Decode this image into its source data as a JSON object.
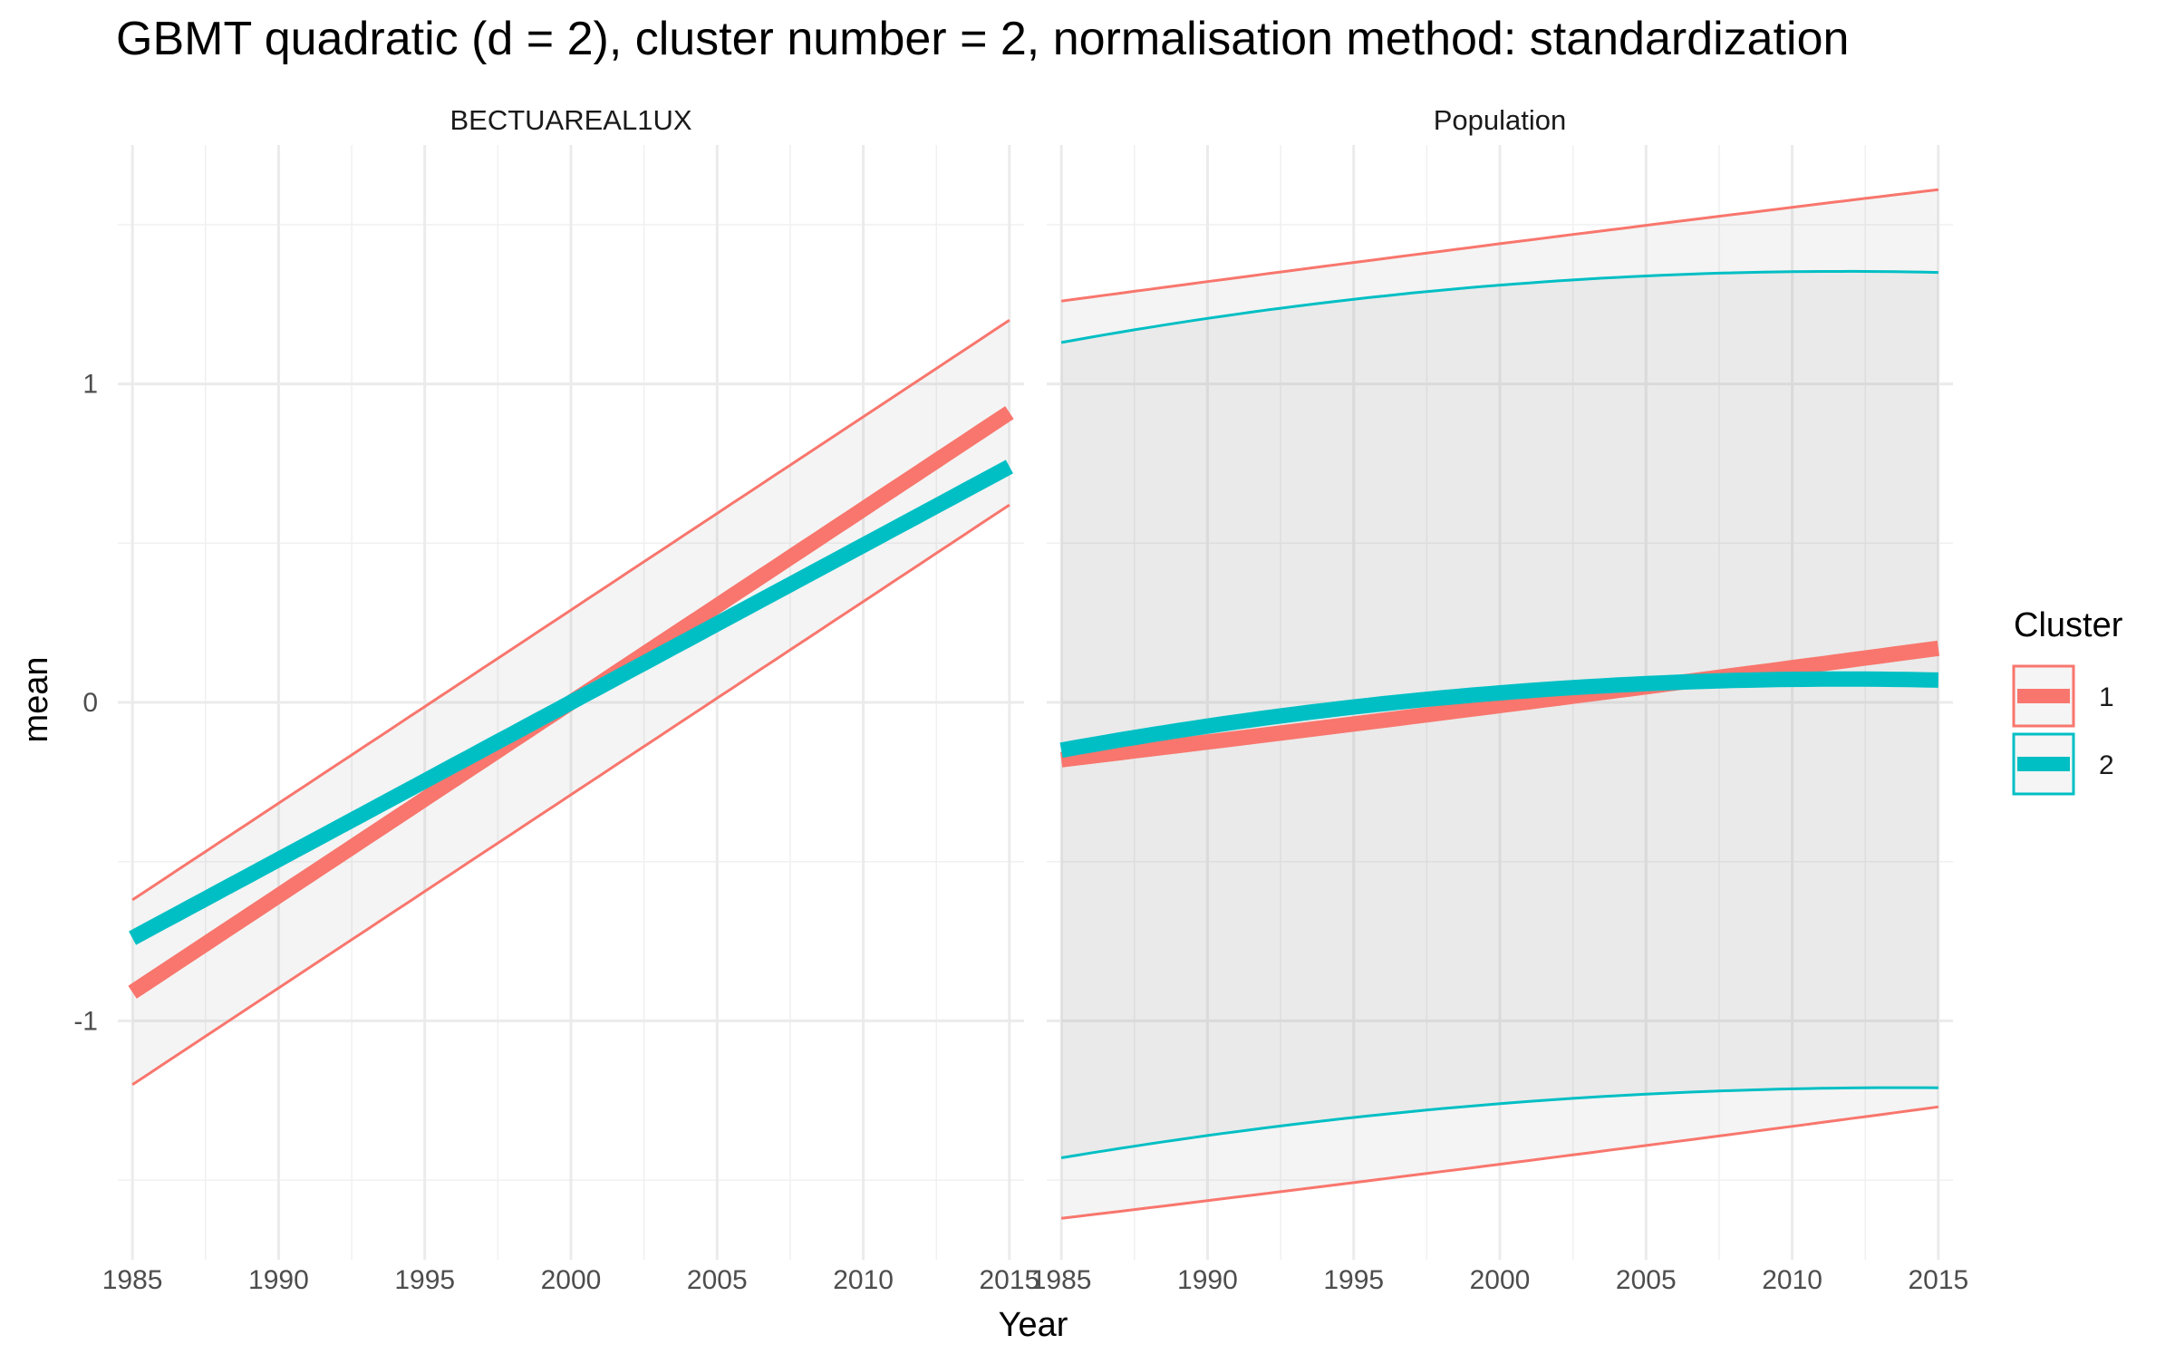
{
  "chart_data": {
    "type": "line",
    "title": "GBMT quadratic (d = 2), cluster number = 2, normalisation method: standardization",
    "xlabel": "Year",
    "ylabel": "mean",
    "xlim": [
      1984.5,
      2015.5
    ],
    "ylim": [
      -1.75,
      1.75
    ],
    "x_ticks": [
      1985,
      1990,
      1995,
      2000,
      2005,
      2010,
      2015
    ],
    "y_ticks": [
      -1,
      0,
      1
    ],
    "grid": true,
    "legend": {
      "title": "Cluster",
      "placement": "right",
      "entries": [
        {
          "label": "1",
          "color": "#F8766D"
        },
        {
          "label": "2",
          "color": "#00BFC4"
        }
      ]
    },
    "colors": {
      "cluster_1": "#F8766D",
      "cluster_2": "#00BFC4",
      "band_fill": "#9a9a9a"
    },
    "panels": [
      {
        "name": "BECTUAREAL1UX",
        "series": [
          {
            "name": "1",
            "x": [
              1985,
              2000,
              2015
            ],
            "mean": [
              -0.91,
              0.0,
              0.91
            ],
            "lower": [
              -1.2,
              -0.29,
              0.62
            ],
            "upper": [
              -0.62,
              0.29,
              1.2
            ]
          },
          {
            "name": "2",
            "x": [
              1985,
              2000,
              2015
            ],
            "mean": [
              -0.74,
              0.0,
              0.74
            ]
          }
        ]
      },
      {
        "name": "Population",
        "series": [
          {
            "name": "1",
            "x": [
              1985,
              2000,
              2015
            ],
            "mean": [
              -0.18,
              -0.01,
              0.17
            ],
            "lower": [
              -1.62,
              -1.45,
              -1.27
            ],
            "upper": [
              1.26,
              1.44,
              1.61
            ]
          },
          {
            "name": "2",
            "x": [
              1985,
              2000,
              2015
            ],
            "mean": [
              -0.15,
              0.03,
              0.07
            ],
            "lower": [
              -1.43,
              -1.26,
              -1.21
            ],
            "upper": [
              1.13,
              1.31,
              1.35
            ]
          }
        ]
      }
    ]
  }
}
